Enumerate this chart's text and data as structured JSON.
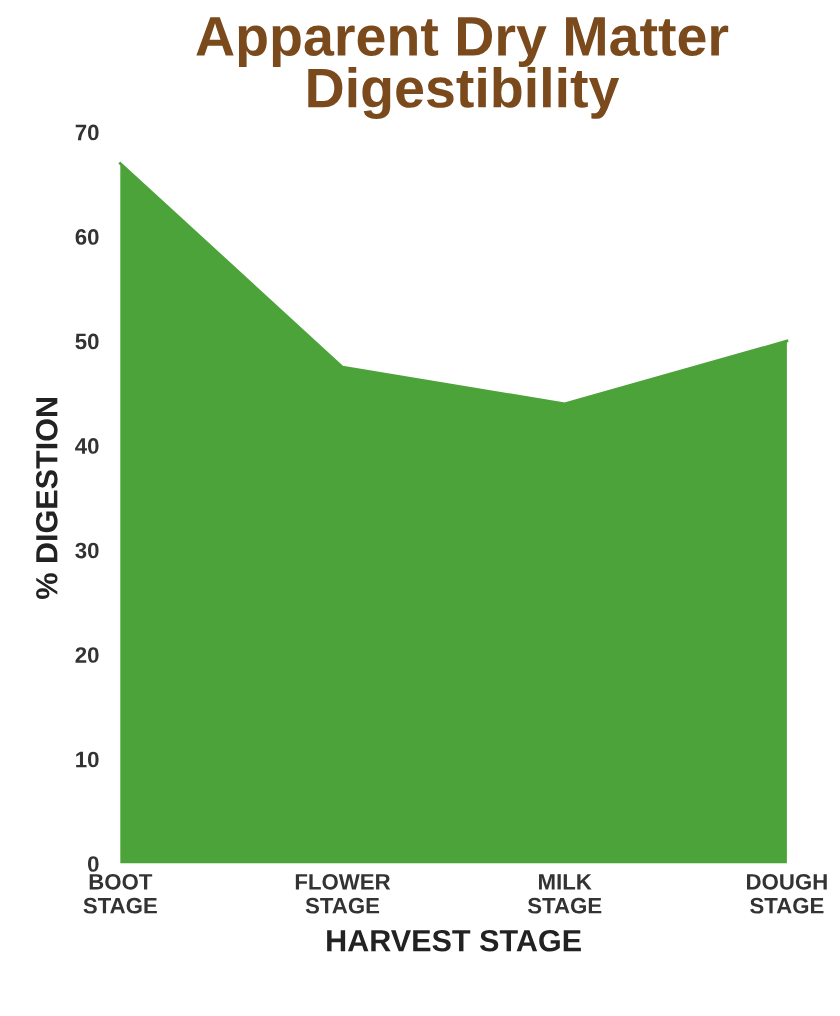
{
  "chart_data": {
    "type": "area",
    "title": "Apparent Dry Matter\nDigestibility",
    "xlabel": "HARVEST STAGE",
    "ylabel": "% DIGESTION",
    "categories": [
      "BOOT\nSTAGE",
      "FLOWER\nSTAGE",
      "MILK\nSTAGE",
      "DOUGH\nSTAGE"
    ],
    "values": [
      67,
      47.5,
      44,
      50
    ],
    "color": "#4ca33a",
    "ylim": [
      0,
      70
    ],
    "yticks": [
      0,
      10,
      20,
      30,
      40,
      50,
      60,
      70
    ],
    "grid": false,
    "legend": false
  }
}
